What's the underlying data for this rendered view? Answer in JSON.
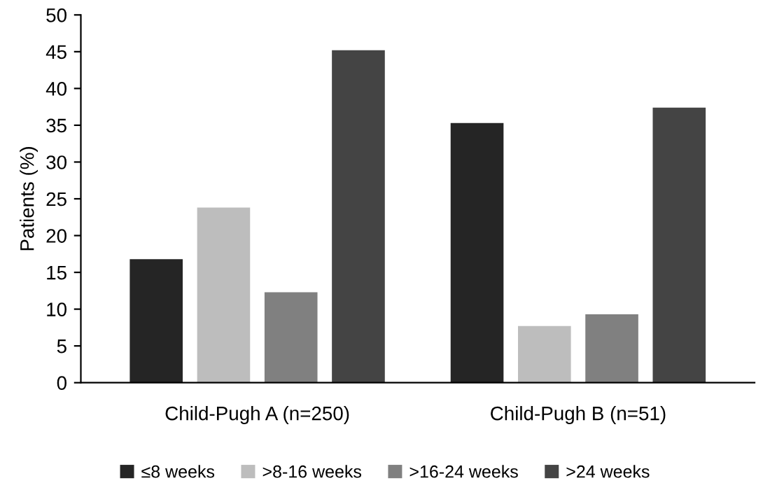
{
  "chart_data": {
    "type": "bar",
    "ylabel": "Patients (%)",
    "categories": [
      "Child-Pugh A (n=250)",
      "Child-Pugh B (n=51)"
    ],
    "series": [
      {
        "name": "≤8 weeks",
        "color": "#252525",
        "values": [
          16.8,
          35.3
        ]
      },
      {
        "name": ">8-16 weeks",
        "color": "#bdbdbd",
        "values": [
          23.8,
          7.7
        ]
      },
      {
        "name": ">16-24 weeks",
        "color": "#808080",
        "values": [
          12.3,
          9.3
        ]
      },
      {
        "name": ">24 weeks",
        "color": "#444444",
        "values": [
          45.2,
          37.4
        ]
      }
    ],
    "ylim": [
      0,
      50
    ],
    "yticks": [
      0,
      5,
      10,
      15,
      20,
      25,
      30,
      35,
      40,
      45,
      50
    ],
    "grid": false,
    "legend": "bottom"
  }
}
